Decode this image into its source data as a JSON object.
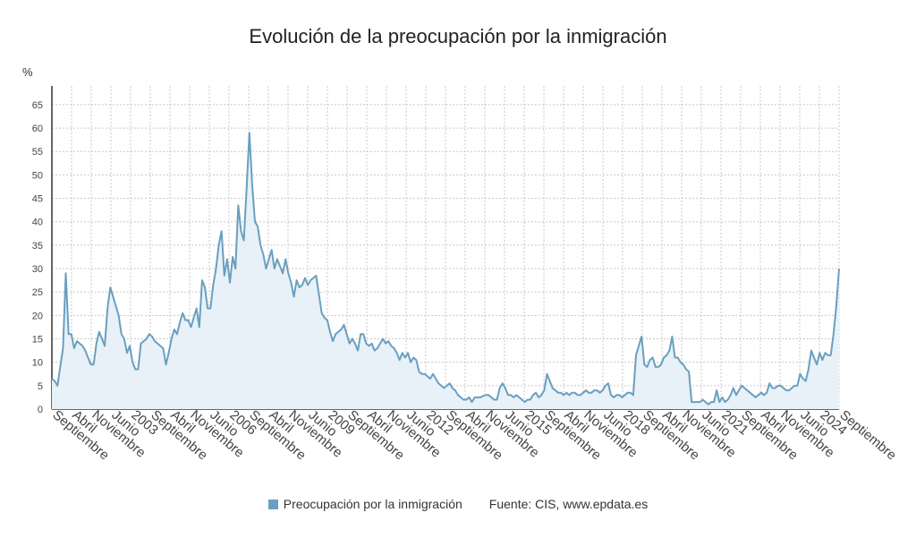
{
  "chart_data": {
    "type": "area",
    "title": "Evolución de la preocupación por la inmigración",
    "ylabel": "%",
    "xlabel": "",
    "ylim": [
      0,
      69
    ],
    "yticks": [
      0,
      5,
      10,
      15,
      20,
      25,
      30,
      35,
      40,
      45,
      50,
      55,
      60,
      65
    ],
    "grid": true,
    "series_color": "#6a9fc0",
    "fill_color": "#e8f1f7",
    "legend_position": "bottom",
    "xtick_labels": [
      "Septiembre",
      "Abril",
      "Noviembre",
      "Junio",
      "2003",
      "Septiembre",
      "Abril",
      "Noviembre",
      "Junio",
      "2006",
      "Septiembre",
      "Abril",
      "Noviembre",
      "Junio",
      "2009",
      "Septiembre",
      "Abril",
      "Noviembre",
      "Junio",
      "2012",
      "Septiembre",
      "Abril",
      "Noviembre",
      "Junio",
      "2015",
      "Septiembre",
      "Abril",
      "Noviembre",
      "Junio",
      "2018",
      "Septiembre",
      "Abril",
      "Noviembre",
      "Junio",
      "2021",
      "Septiembre",
      "Abril",
      "Noviembre",
      "Junio",
      "2024",
      "Septiembre"
    ],
    "series": [
      {
        "name": "Preocupación por la inmigración",
        "values": [
          6.5,
          6.0,
          5.0,
          9.0,
          13.0,
          29.0,
          16.0,
          16.0,
          13.0,
          14.5,
          14.0,
          13.5,
          12.5,
          11.0,
          9.5,
          9.5,
          14.0,
          16.5,
          15.0,
          13.5,
          21.5,
          26.0,
          24.0,
          22.0,
          20.0,
          16.0,
          15.0,
          12.0,
          13.5,
          10.0,
          8.5,
          8.5,
          14.0,
          14.5,
          15.0,
          16.0,
          15.5,
          14.5,
          14.0,
          13.5,
          13.0,
          9.5,
          12.0,
          15.0,
          17.0,
          16.0,
          18.5,
          20.5,
          19.0,
          19.0,
          17.5,
          19.5,
          21.5,
          17.5,
          27.5,
          26.0,
          21.5,
          21.5,
          26.5,
          30.0,
          35.0,
          38.0,
          28.5,
          32.0,
          27.0,
          32.5,
          30.0,
          43.5,
          38.0,
          36.0,
          47.0,
          59.0,
          48.0,
          40.0,
          39.0,
          35.0,
          33.0,
          30.0,
          32.0,
          34.0,
          30.0,
          32.0,
          30.5,
          29.0,
          32.0,
          29.0,
          27.0,
          24.0,
          27.5,
          26.0,
          26.5,
          28.0,
          26.5,
          27.5,
          28.0,
          28.5,
          24.5,
          20.5,
          19.5,
          19.0,
          16.5,
          14.5,
          16.0,
          16.5,
          17.0,
          18.0,
          16.0,
          14.0,
          15.0,
          14.0,
          12.5,
          16.0,
          16.0,
          14.0,
          13.5,
          14.0,
          12.5,
          13.0,
          14.0,
          15.0,
          14.0,
          14.5,
          13.5,
          13.0,
          12.0,
          10.5,
          12.0,
          11.0,
          12.0,
          10.0,
          11.0,
          10.5,
          8.0,
          7.5,
          7.5,
          7.0,
          6.5,
          7.5,
          6.5,
          5.5,
          5.0,
          4.5,
          5.0,
          5.5,
          4.5,
          4.0,
          3.0,
          2.5,
          2.0,
          2.0,
          2.5,
          1.5,
          2.5,
          2.5,
          2.5,
          2.8,
          3.0,
          3.0,
          2.5,
          2.0,
          2.0,
          4.5,
          5.5,
          4.5,
          3.0,
          3.0,
          2.5,
          3.0,
          2.5,
          2.0,
          1.5,
          2.0,
          2.0,
          3.0,
          3.5,
          2.5,
          3.0,
          4.0,
          7.5,
          6.0,
          4.5,
          4.0,
          3.5,
          3.5,
          3.0,
          3.5,
          3.0,
          3.5,
          3.5,
          3.0,
          3.0,
          3.5,
          4.0,
          3.5,
          3.5,
          4.0,
          4.0,
          3.5,
          4.0,
          5.0,
          5.5,
          3.0,
          2.5,
          3.0,
          3.0,
          2.5,
          3.0,
          3.5,
          3.5,
          3.0,
          11.5,
          13.5,
          15.5,
          9.5,
          9.0,
          10.5,
          11.0,
          9.0,
          9.0,
          9.5,
          11.0,
          11.5,
          12.5,
          15.5,
          11.0,
          11.0,
          10.0,
          9.5,
          8.5,
          8.0,
          1.5,
          1.5,
          1.5,
          1.5,
          2.0,
          1.5,
          1.0,
          1.5,
          1.5,
          4.0,
          1.5,
          2.5,
          1.5,
          2.0,
          3.0,
          4.5,
          3.0,
          4.0,
          5.0,
          4.5,
          4.0,
          3.5,
          3.0,
          2.5,
          3.0,
          3.5,
          3.0,
          3.5,
          5.5,
          4.5,
          4.5,
          5.0,
          5.0,
          4.5,
          4.0,
          4.0,
          4.5,
          5.0,
          5.0,
          7.5,
          6.5,
          6.0,
          8.5,
          12.5,
          11.0,
          9.5,
          12.0,
          10.5,
          12.0,
          11.5,
          11.5,
          16.0,
          22.0,
          30.0
        ]
      }
    ],
    "legend_label": "Preocupación por la inmigración",
    "source": "Fuente: CIS, www.epdata.es"
  }
}
